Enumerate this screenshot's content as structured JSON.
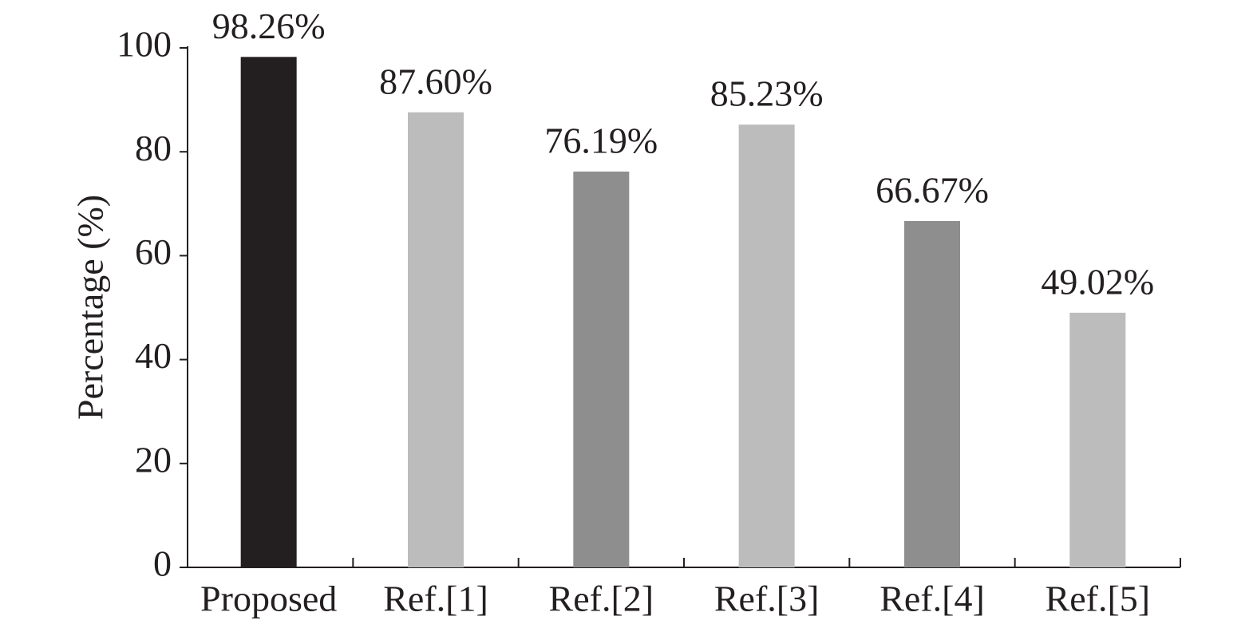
{
  "chart_data": {
    "type": "bar",
    "ylabel": "Percentage (%)",
    "categories": [
      "Proposed",
      "Ref.[1]",
      "Ref.[2]",
      "Ref.[3]",
      "Ref.[4]",
      "Ref.[5]"
    ],
    "values": [
      98.26,
      87.6,
      76.19,
      85.23,
      66.67,
      49.02
    ],
    "value_labels": [
      "98.26%",
      "87.60%",
      "76.19%",
      "85.23%",
      "66.67%",
      "49.02%"
    ],
    "colors": [
      "#231f20",
      "#bcbcbc",
      "#8f8e8e",
      "#bcbcbc",
      "#8f8e8e",
      "#bcbcbc"
    ],
    "ylim": [
      0,
      100
    ],
    "yticks": [
      0,
      20,
      40,
      60,
      80,
      100
    ],
    "grid": false
  }
}
